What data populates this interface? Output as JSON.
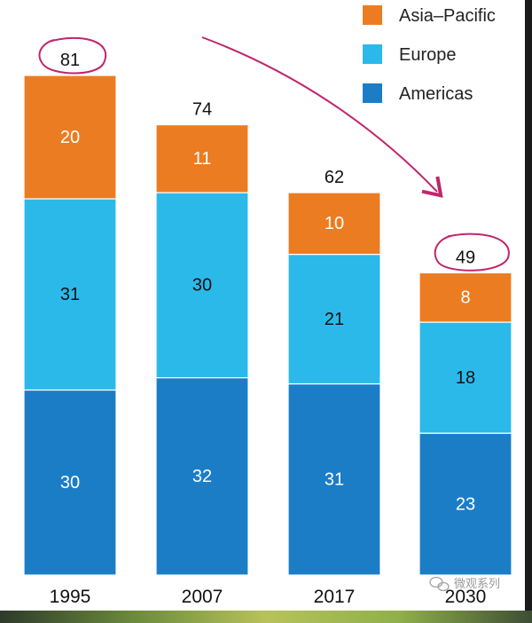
{
  "chart_data": {
    "type": "bar",
    "stacked": true,
    "categories": [
      "1995",
      "2007",
      "2017",
      "2030"
    ],
    "series": [
      {
        "name": "Americas",
        "values": [
          30,
          32,
          31,
          23
        ],
        "color": "#1c7dc7",
        "label_color": "#ffffff"
      },
      {
        "name": "Europe",
        "values": [
          31,
          30,
          21,
          18
        ],
        "color": "#2bb9ea",
        "label_color": "#111111"
      },
      {
        "name": "Asia–Pacific",
        "values": [
          20,
          11,
          10,
          8
        ],
        "color": "#ec7c22",
        "label_color": "#ffffff"
      }
    ],
    "totals": [
      "81",
      "74",
      "62",
      "49"
    ],
    "legend": [
      "Asia–Pacific",
      "Europe",
      "Americas"
    ],
    "legend_position": "top-right",
    "ylim": [
      0,
      81
    ],
    "annotations": {
      "circled_totals": [
        "1995",
        "2030"
      ],
      "arrow": "from 1995 total toward 2030 total",
      "color": "#c0266b"
    }
  },
  "watermark": {
    "text": "微观系列"
  }
}
